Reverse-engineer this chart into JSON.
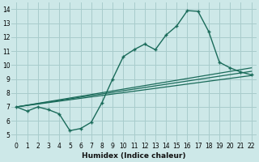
{
  "xlabel": "Humidex (Indice chaleur)",
  "xlim": [
    -0.5,
    22.5
  ],
  "ylim": [
    4.5,
    14.5
  ],
  "xticks": [
    0,
    1,
    2,
    3,
    4,
    5,
    6,
    7,
    8,
    9,
    10,
    11,
    12,
    13,
    14,
    15,
    16,
    17,
    18,
    19,
    20,
    21,
    22
  ],
  "yticks": [
    5,
    6,
    7,
    8,
    9,
    10,
    11,
    12,
    13,
    14
  ],
  "background_color": "#cde8e8",
  "grid_color": "#a8cccc",
  "line_color": "#1a6b5a",
  "curve1_x": [
    0,
    1,
    2,
    3,
    4,
    5,
    6,
    7,
    8,
    9,
    10,
    11,
    12,
    13,
    14,
    15,
    16,
    17,
    18,
    19,
    20,
    21,
    22
  ],
  "curve1_y": [
    7.0,
    6.7,
    7.0,
    6.8,
    6.5,
    5.3,
    5.45,
    5.9,
    7.3,
    9.0,
    10.6,
    11.1,
    11.5,
    11.1,
    12.15,
    12.8,
    13.9,
    13.85,
    12.4,
    10.2,
    9.8,
    9.5,
    9.3
  ],
  "curve2_x": [
    0,
    22
  ],
  "curve2_y": [
    7.0,
    9.25
  ],
  "curve3_x": [
    0,
    22
  ],
  "curve3_y": [
    7.0,
    9.55
  ],
  "curve4_x": [
    0,
    22
  ],
  "curve4_y": [
    7.0,
    9.8
  ]
}
